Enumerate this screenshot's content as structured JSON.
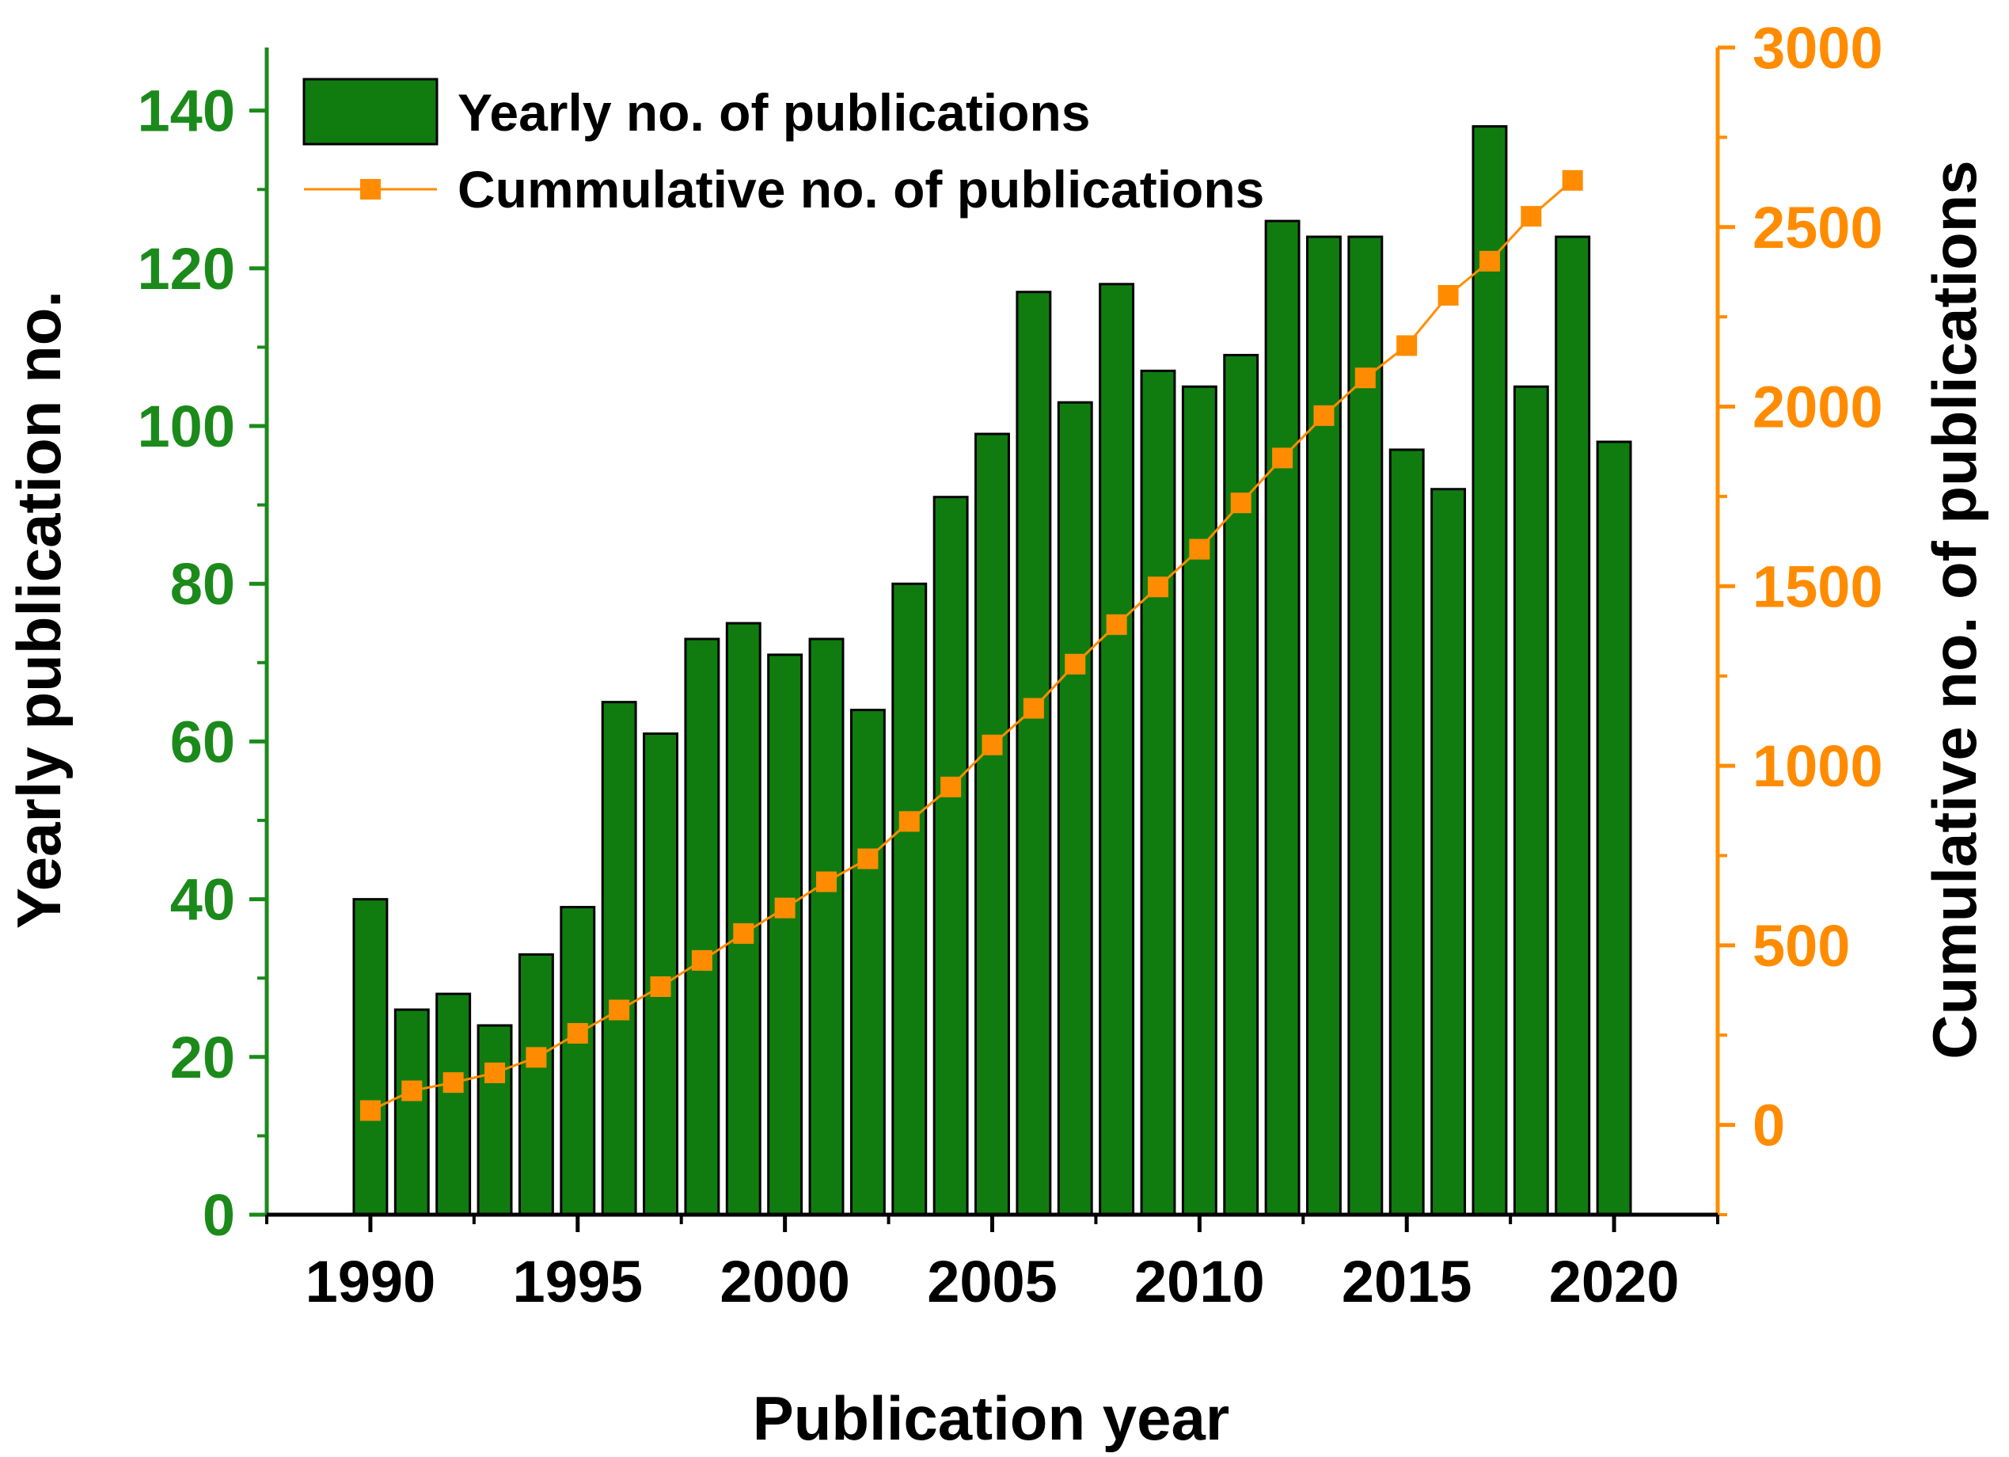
{
  "colors": {
    "bar_fill": "#107c10",
    "bar_stroke": "#000000",
    "line": "#ff8c00",
    "left_axis": "#1b8a1b",
    "right_axis": "#ff8c00",
    "frame": "#000000"
  },
  "chart_data": {
    "type": "bar+line",
    "xlabel": "Publication year",
    "ylabel_left": "Yearly publication no.",
    "ylabel_right": "Cumulative no. of publications",
    "xlim": [
      1987.5,
      2022.5
    ],
    "ylim_left": [
      0,
      148
    ],
    "ylim_right": [
      -250,
      3000
    ],
    "x_ticks": [
      1990,
      1995,
      2000,
      2005,
      2010,
      2015,
      2020
    ],
    "x_tick_labels": [
      "1990",
      "1995",
      "2000",
      "2005",
      "2010",
      "2015",
      "2020"
    ],
    "y_left_ticks": [
      0,
      20,
      40,
      60,
      80,
      100,
      120,
      140
    ],
    "y_left_tick_labels": [
      "0",
      "20",
      "40",
      "60",
      "80",
      "100",
      "120",
      "140"
    ],
    "y_right_ticks": [
      0,
      500,
      1000,
      1500,
      2000,
      2500,
      3000
    ],
    "y_right_tick_labels": [
      "0",
      "500",
      "1000",
      "1500",
      "2000",
      "2500",
      "3000"
    ],
    "legend_position": "top-left",
    "series": [
      {
        "name": "Yearly no. of publications",
        "type": "bar",
        "axis": "left",
        "x": [
          1990,
          1991,
          1992,
          1993,
          1994,
          1995,
          1996,
          1997,
          1998,
          1999,
          2000,
          2001,
          2002,
          2003,
          2004,
          2005,
          2006,
          2007,
          2008,
          2009,
          2010,
          2011,
          2012,
          2013,
          2014,
          2015,
          2016,
          2017,
          2018,
          2019,
          2020
        ],
        "values": [
          40,
          26,
          28,
          24,
          33,
          39,
          65,
          61,
          73,
          75,
          71,
          73,
          64,
          80,
          91,
          99,
          117,
          103,
          118,
          107,
          105,
          109,
          126,
          124,
          124,
          97,
          92,
          138,
          105,
          124,
          98
        ]
      },
      {
        "name": "Cummulative no. of publications",
        "type": "line",
        "axis": "right",
        "x": [
          1990,
          1991,
          1992,
          1993,
          1994,
          1995,
          1996,
          1997,
          1998,
          1999,
          2000,
          2001,
          2002,
          2003,
          2004,
          2005,
          2006,
          2007,
          2008,
          2009,
          2010,
          2011,
          2012,
          2013,
          2014,
          2015,
          2016,
          2017,
          2018,
          2019
        ],
        "values": [
          40,
          95,
          118,
          145,
          188,
          255,
          320,
          385,
          458,
          533,
          604,
          677,
          741,
          845,
          941,
          1058,
          1160,
          1283,
          1393,
          1498,
          1603,
          1732,
          1857,
          1975,
          2080,
          2170,
          2310,
          2405,
          2530,
          2630
        ]
      }
    ]
  }
}
